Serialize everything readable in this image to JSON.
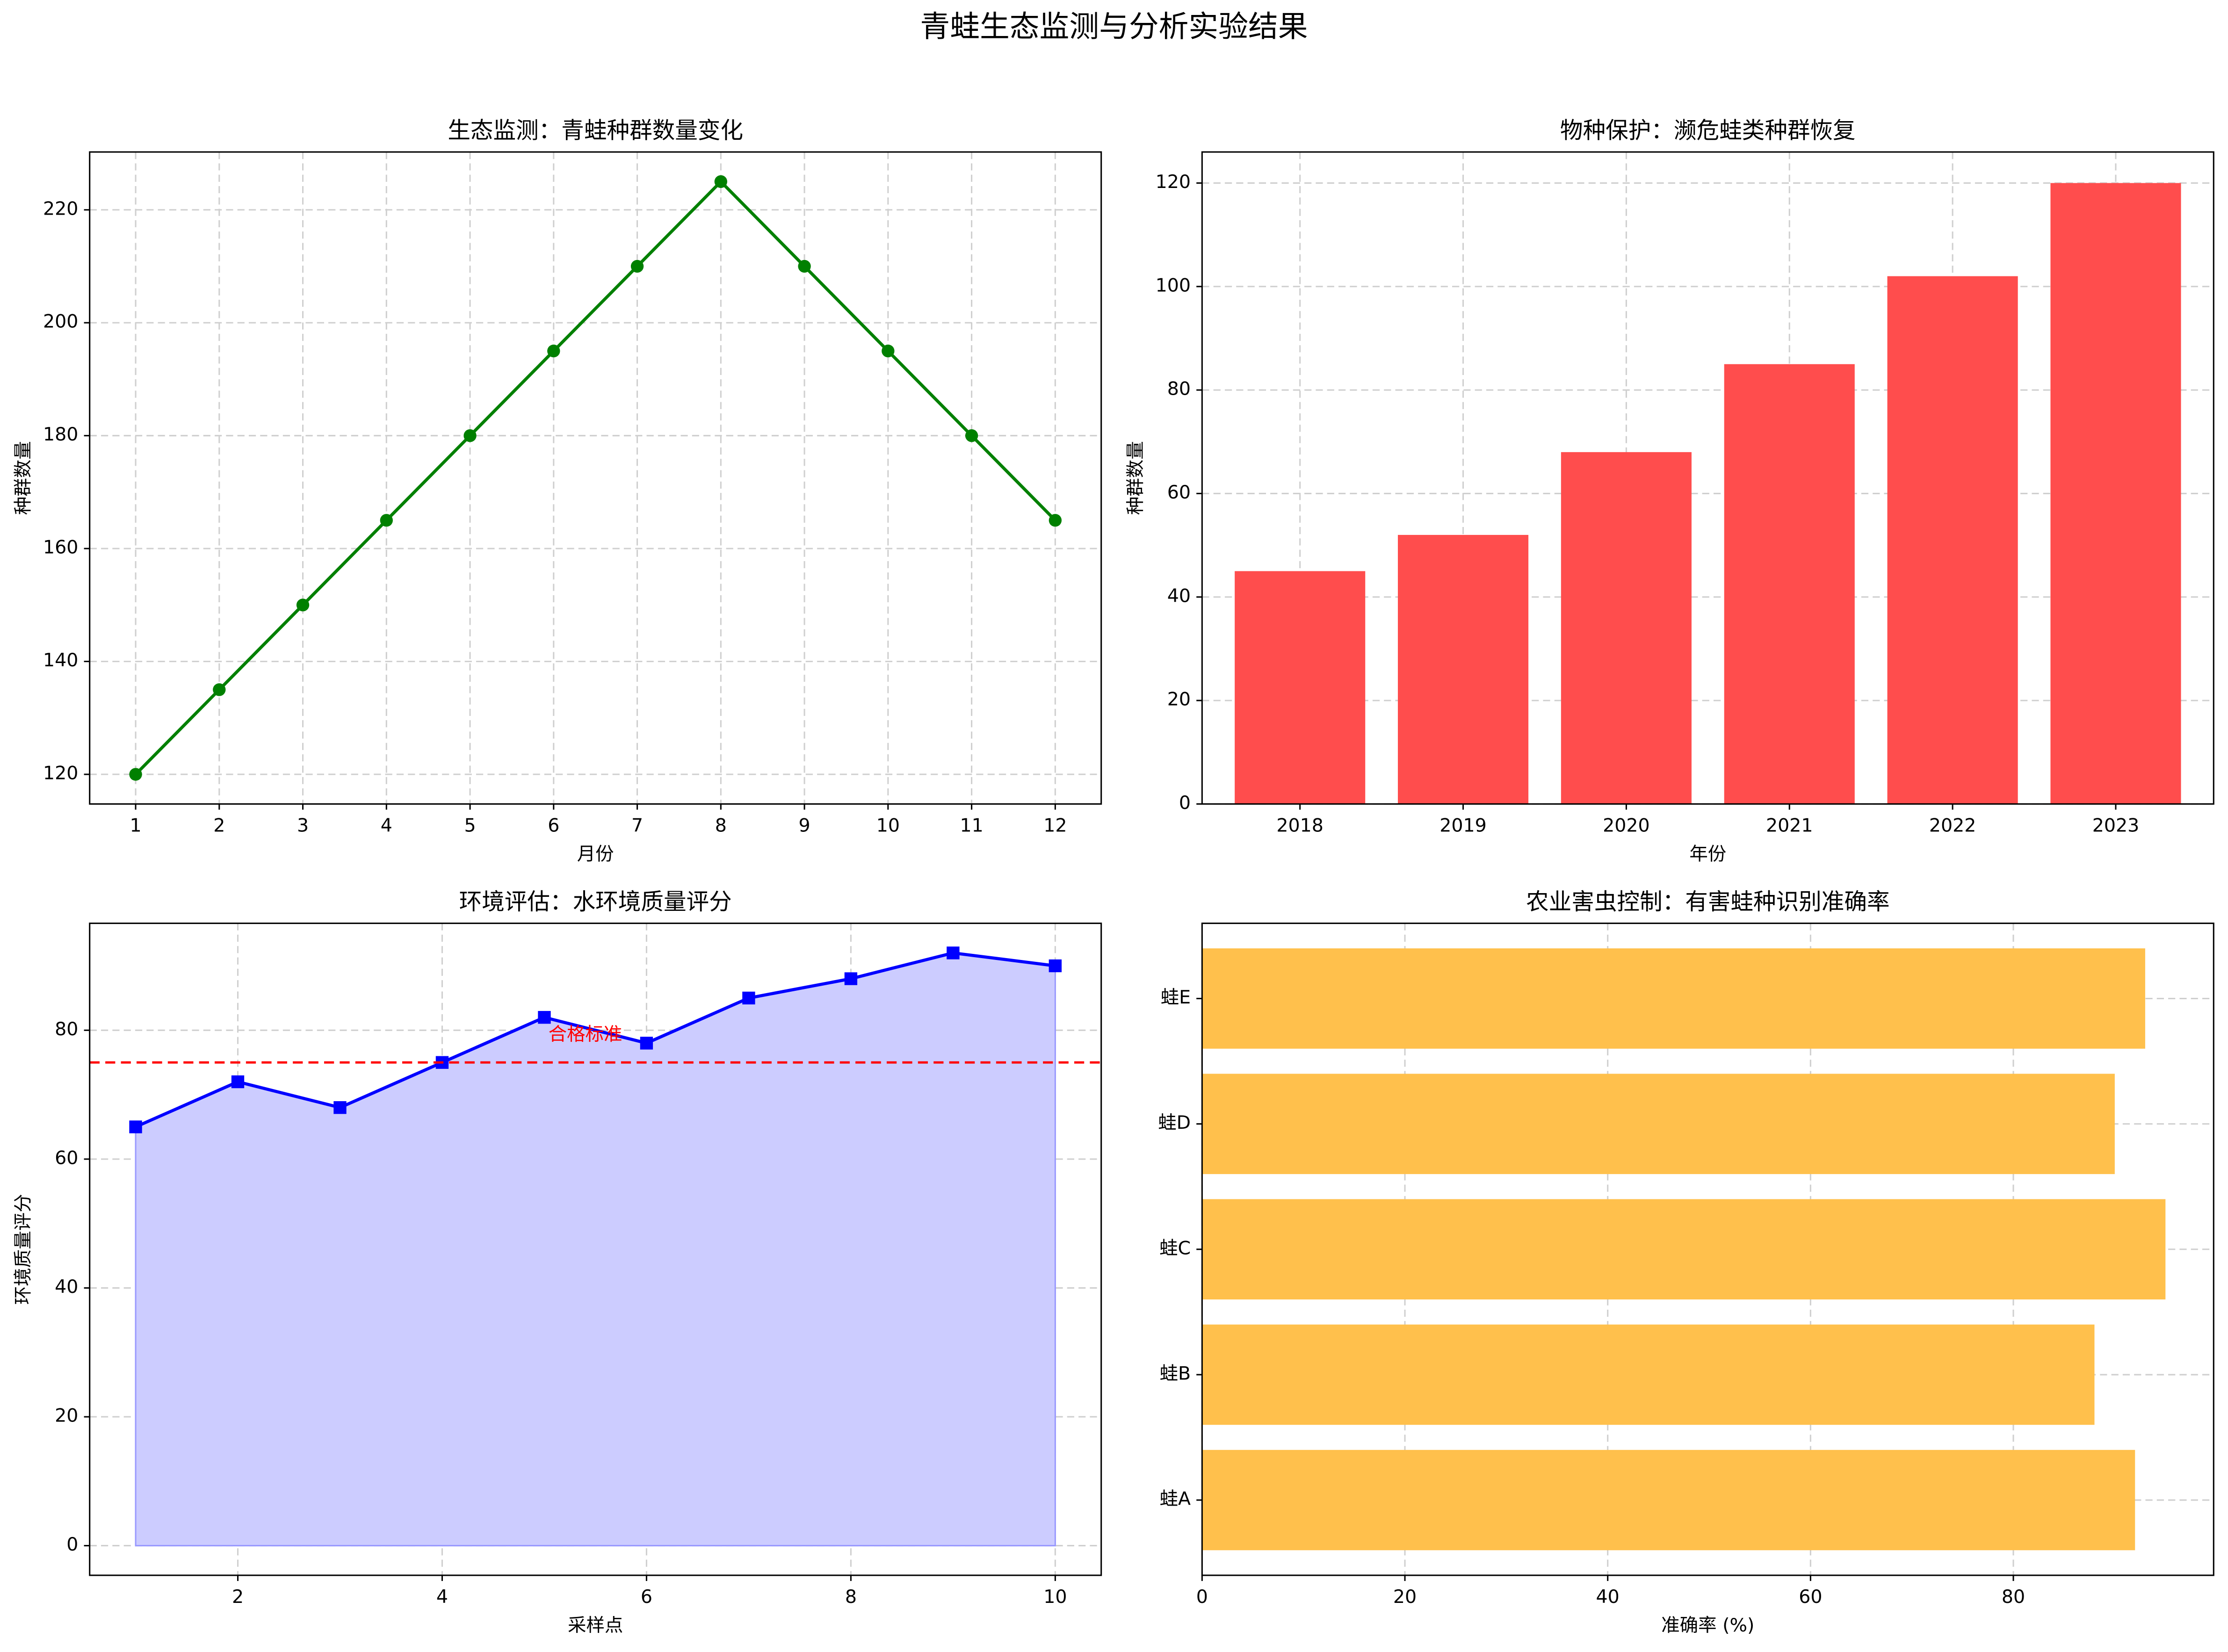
{
  "title": "青蛙生态监测与分析实验结果",
  "chart_data": [
    {
      "type": "line",
      "title": "生态监测：青蛙种群数量变化",
      "xlabel": "月份",
      "ylabel": "种群数量",
      "x": [
        1,
        2,
        3,
        4,
        5,
        6,
        7,
        8,
        9,
        10,
        11,
        12
      ],
      "values": [
        120,
        135,
        150,
        165,
        180,
        195,
        210,
        225,
        210,
        195,
        180,
        165
      ],
      "color": "#008000",
      "xlim": [
        0.45,
        12.55
      ],
      "xticks": [
        1,
        2,
        3,
        4,
        5,
        6,
        7,
        8,
        9,
        10,
        11,
        12
      ],
      "ylim": [
        114.75,
        230.25
      ],
      "yticks": [
        120,
        140,
        160,
        180,
        200,
        220
      ],
      "grid": true
    },
    {
      "type": "bar",
      "title": "物种保护：濒危蛙类种群恢复",
      "xlabel": "年份",
      "ylabel": "种群数量",
      "categories": [
        "2018",
        "2019",
        "2020",
        "2021",
        "2022",
        "2023"
      ],
      "values": [
        45,
        52,
        68,
        85,
        102,
        120
      ],
      "color": "#ff4d4d",
      "ylim": [
        0,
        126
      ],
      "yticks": [
        0,
        20,
        40,
        60,
        80,
        100,
        120
      ],
      "grid": true
    },
    {
      "type": "area",
      "title": "环境评估：水环境质量评分",
      "xlabel": "采样点",
      "ylabel": "环境质量评分",
      "x": [
        1,
        2,
        3,
        4,
        5,
        6,
        7,
        8,
        9,
        10
      ],
      "values": [
        65,
        72,
        68,
        75,
        82,
        78,
        85,
        88,
        92,
        90
      ],
      "color": "#0000ff",
      "fill_color": "#ccccff",
      "threshold": {
        "value": 75,
        "label": "合格标准",
        "color": "#ff0000"
      },
      "xlim": [
        0.55,
        10.45
      ],
      "xticks": [
        2,
        4,
        6,
        8,
        10
      ],
      "ylim": [
        -4.6,
        96.6
      ],
      "yticks": [
        0,
        20,
        40,
        60,
        80
      ],
      "grid": true
    },
    {
      "type": "barh",
      "title": "农业害虫控制：有害蛙种识别准确率",
      "xlabel": "准确率 (%)",
      "categories": [
        "蛙A",
        "蛙B",
        "蛙C",
        "蛙D",
        "蛙E"
      ],
      "values": [
        92,
        88,
        95,
        90,
        93
      ],
      "color": "#ffc04c",
      "xlim": [
        0,
        99.75
      ],
      "xticks": [
        0,
        20,
        40,
        60,
        80
      ],
      "grid": true
    }
  ]
}
